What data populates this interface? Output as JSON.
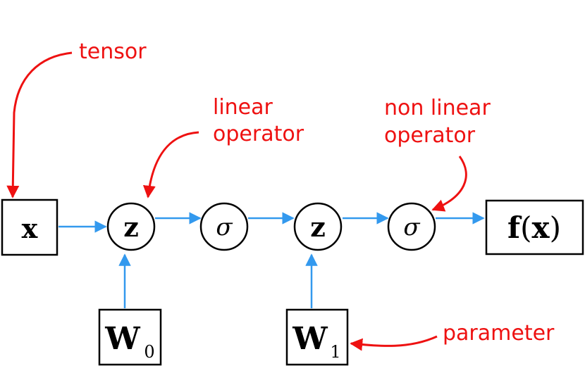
{
  "diagram": {
    "nodes": {
      "input": "x",
      "linear_1": "z",
      "nonlinear_1": "σ",
      "linear_2": "z",
      "nonlinear_2": "σ",
      "output_f": "f",
      "output_lparen": "(",
      "output_x": "x",
      "output_rparen": ")",
      "param_0_base": "W",
      "param_0_sub": "0",
      "param_1_base": "W",
      "param_1_sub": "1"
    },
    "annotations": {
      "tensor": "tensor",
      "linear_line1": "linear",
      "linear_line2": "operator",
      "nonlinear_line1": "non linear",
      "nonlinear_line2": "operator",
      "parameter": "parameter"
    },
    "colors": {
      "flow_arrow": "#3399ee",
      "annotation": "#ee1111",
      "node_stroke": "#000000"
    }
  }
}
